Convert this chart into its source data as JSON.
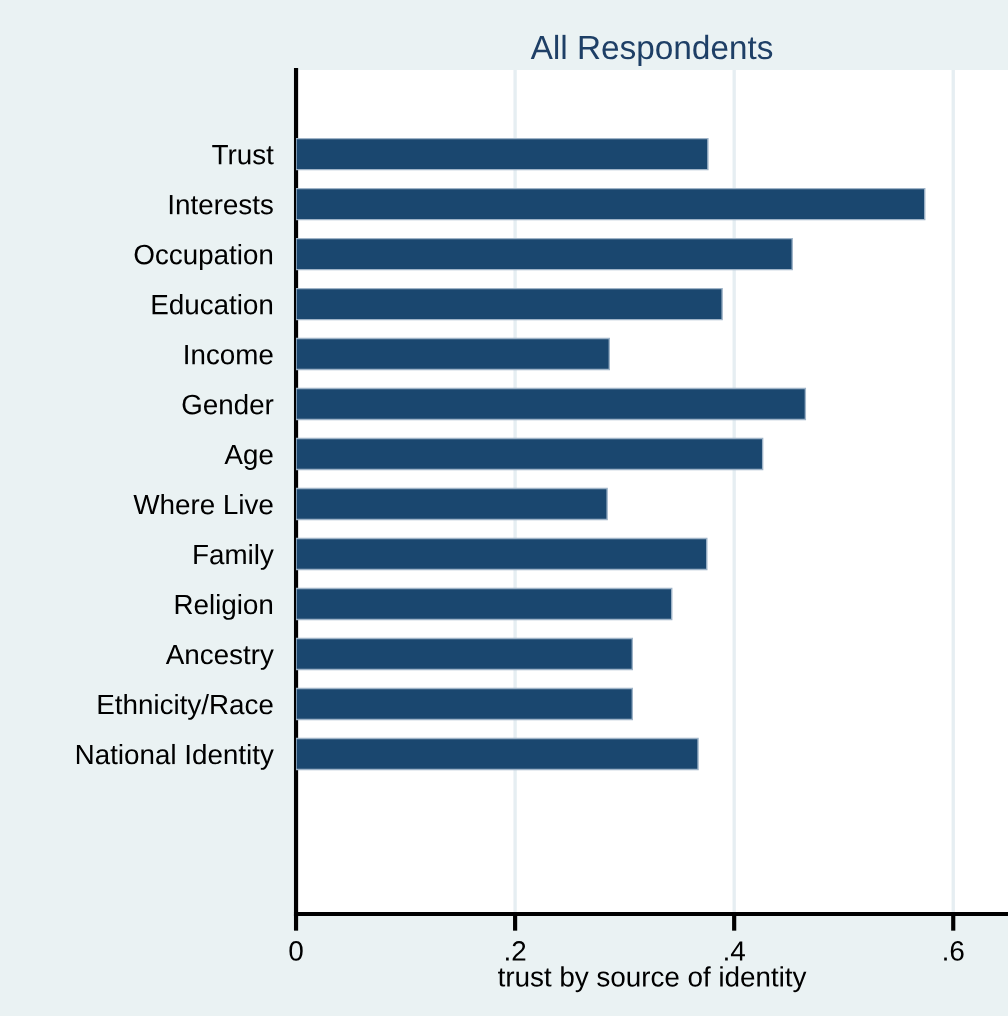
{
  "chart_data": {
    "type": "bar",
    "orientation": "horizontal",
    "title": "All Respondents",
    "xlabel": "trust by source of identity",
    "categories": [
      "Trust",
      "Interests",
      "Occupation",
      "Education",
      "Income",
      "Gender",
      "Age",
      "Where Live",
      "Family",
      "Religion",
      "Ancestry",
      "Ethnicity/Race",
      "National Identity"
    ],
    "values": [
      0.376,
      0.574,
      0.453,
      0.389,
      0.286,
      0.465,
      0.426,
      0.284,
      0.375,
      0.343,
      0.307,
      0.307,
      0.367
    ],
    "color": "#1a476f",
    "xlim": [
      0,
      0.65
    ],
    "xticks": [
      0,
      {
        "value": 0.2,
        "label": ".2"
      },
      {
        "value": 0.4,
        "label": ".4"
      },
      {
        "value": 0.6,
        "label": ".6"
      }
    ],
    "grid": "x"
  }
}
